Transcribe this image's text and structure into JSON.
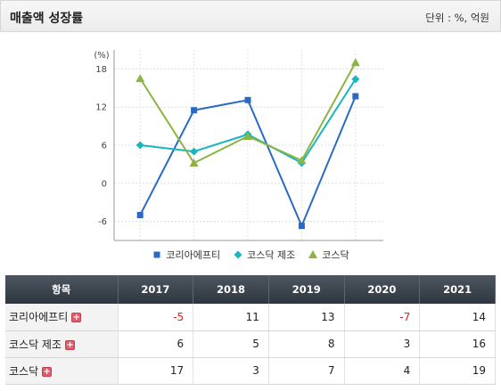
{
  "header": {
    "title": "매출액 성장률",
    "unit_label": "단위 : %, 억원"
  },
  "chart_data": {
    "type": "line",
    "y_unit_label": "(%)",
    "categories": [
      "2017",
      "2018",
      "2019",
      "2020",
      "2021"
    ],
    "ylim": [
      -9,
      21
    ],
    "yticks": [
      -6,
      0,
      6,
      12,
      18
    ],
    "grid": true,
    "legend_position": "bottom",
    "series": [
      {
        "name": "코리아에프티",
        "color": "#2a6ac4",
        "marker": "square",
        "values": [
          -5,
          11.5,
          13.1,
          -6.7,
          13.7
        ]
      },
      {
        "name": "코스닥 제조",
        "color": "#1ab6c0",
        "marker": "diamond",
        "values": [
          6,
          5,
          7.7,
          3.2,
          16.4
        ]
      },
      {
        "name": "코스닥",
        "color": "#8db443",
        "marker": "triangle",
        "values": [
          16.5,
          3.2,
          7.4,
          3.6,
          19
        ]
      }
    ]
  },
  "table": {
    "header_label": "항목",
    "years": [
      "2017",
      "2018",
      "2019",
      "2020",
      "2021"
    ],
    "rows": [
      {
        "label": "코리아에프티",
        "values": [
          "-5",
          "11",
          "13",
          "-7",
          "14"
        ]
      },
      {
        "label": "코스닥 제조",
        "values": [
          "6",
          "5",
          "8",
          "3",
          "16"
        ]
      },
      {
        "label": "코스닥",
        "values": [
          "17",
          "3",
          "7",
          "4",
          "19"
        ]
      }
    ],
    "expand_icon": "plus-icon",
    "negative_color": "#e02020"
  }
}
